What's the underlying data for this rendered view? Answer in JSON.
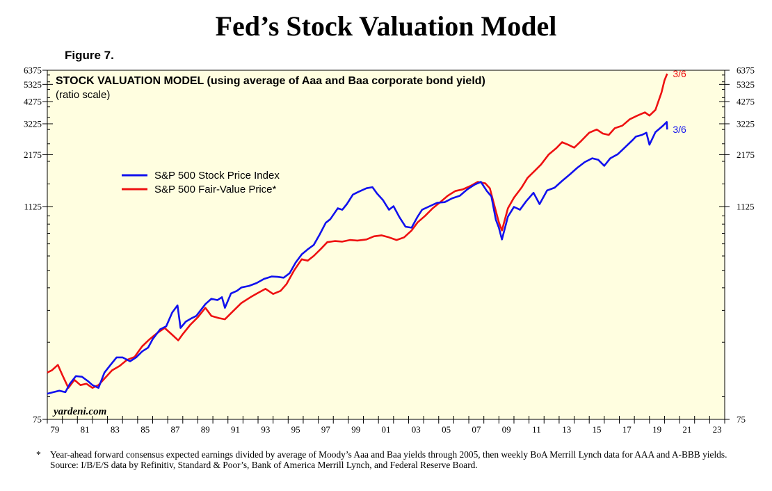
{
  "page": {
    "title": "Fed’s Stock Valuation Model",
    "figure_label": "Figure 7."
  },
  "chart_data": {
    "type": "line",
    "title": "STOCK VALUATION MODEL (using average of Aaa and Baa corporate bond yield)",
    "subtitle": "(ratio scale)",
    "scale": "log",
    "ylim": [
      75,
      6375
    ],
    "xlim": [
      1979,
      2024
    ],
    "y_ticks": [
      "75",
      "1125",
      "2175",
      "3225",
      "4275",
      "5325",
      "6375"
    ],
    "x_ticks": [
      "79",
      "81",
      "83",
      "85",
      "87",
      "89",
      "91",
      "93",
      "95",
      "97",
      "99",
      "01",
      "03",
      "05",
      "07",
      "09",
      "11",
      "13",
      "15",
      "17",
      "19",
      "21",
      "23"
    ],
    "watermark": "yardeni.com",
    "legend": [
      "S&P 500 Stock Price Index",
      "S&P 500 Fair-Value Price*"
    ],
    "series": [
      {
        "name": "S&P 500 Stock Price Index",
        "color": "#1111ee",
        "end_label": "3/6",
        "points": [
          [
            1979.0,
            104
          ],
          [
            1979.4,
            106
          ],
          [
            1979.8,
            108
          ],
          [
            1980.2,
            106
          ],
          [
            1980.5,
            118
          ],
          [
            1980.9,
            130
          ],
          [
            1981.3,
            129
          ],
          [
            1981.7,
            122
          ],
          [
            1982.0,
            116
          ],
          [
            1982.4,
            112
          ],
          [
            1982.8,
            136
          ],
          [
            1983.2,
            150
          ],
          [
            1983.6,
            165
          ],
          [
            1984.0,
            165
          ],
          [
            1984.5,
            157
          ],
          [
            1984.9,
            165
          ],
          [
            1985.3,
            178
          ],
          [
            1985.7,
            187
          ],
          [
            1986.0,
            208
          ],
          [
            1986.5,
            236
          ],
          [
            1986.9,
            245
          ],
          [
            1987.3,
            292
          ],
          [
            1987.65,
            320
          ],
          [
            1987.85,
            240
          ],
          [
            1988.2,
            260
          ],
          [
            1988.6,
            272
          ],
          [
            1988.9,
            280
          ],
          [
            1989.5,
            325
          ],
          [
            1989.9,
            348
          ],
          [
            1990.3,
            342
          ],
          [
            1990.6,
            355
          ],
          [
            1990.8,
            310
          ],
          [
            1991.2,
            372
          ],
          [
            1991.6,
            385
          ],
          [
            1991.9,
            402
          ],
          [
            1992.4,
            410
          ],
          [
            1992.9,
            425
          ],
          [
            1993.4,
            448
          ],
          [
            1993.9,
            462
          ],
          [
            1994.3,
            460
          ],
          [
            1994.7,
            455
          ],
          [
            1995.1,
            482
          ],
          [
            1995.5,
            552
          ],
          [
            1995.9,
            612
          ],
          [
            1996.3,
            652
          ],
          [
            1996.7,
            690
          ],
          [
            1997.1,
            790
          ],
          [
            1997.5,
            915
          ],
          [
            1997.8,
            958
          ],
          [
            1998.3,
            1100
          ],
          [
            1998.6,
            1080
          ],
          [
            1998.9,
            1160
          ],
          [
            1999.3,
            1310
          ],
          [
            1999.7,
            1360
          ],
          [
            2000.2,
            1420
          ],
          [
            2000.6,
            1440
          ],
          [
            2000.9,
            1330
          ],
          [
            2001.3,
            1220
          ],
          [
            2001.7,
            1080
          ],
          [
            2002.0,
            1130
          ],
          [
            2002.4,
            980
          ],
          [
            2002.8,
            870
          ],
          [
            2003.2,
            860
          ],
          [
            2003.6,
            990
          ],
          [
            2003.9,
            1080
          ],
          [
            2004.4,
            1130
          ],
          [
            2004.9,
            1180
          ],
          [
            2005.4,
            1190
          ],
          [
            2005.9,
            1250
          ],
          [
            2006.4,
            1290
          ],
          [
            2006.9,
            1400
          ],
          [
            2007.4,
            1490
          ],
          [
            2007.8,
            1540
          ],
          [
            2008.2,
            1370
          ],
          [
            2008.5,
            1280
          ],
          [
            2008.8,
            950
          ],
          [
            2009.0,
            860
          ],
          [
            2009.2,
            740
          ],
          [
            2009.6,
            990
          ],
          [
            2010.0,
            1120
          ],
          [
            2010.4,
            1080
          ],
          [
            2010.8,
            1200
          ],
          [
            2011.3,
            1340
          ],
          [
            2011.7,
            1160
          ],
          [
            2012.2,
            1380
          ],
          [
            2012.7,
            1430
          ],
          [
            2013.2,
            1560
          ],
          [
            2013.7,
            1690
          ],
          [
            2014.2,
            1840
          ],
          [
            2014.7,
            1980
          ],
          [
            2015.2,
            2080
          ],
          [
            2015.6,
            2040
          ],
          [
            2016.0,
            1890
          ],
          [
            2016.4,
            2080
          ],
          [
            2016.9,
            2190
          ],
          [
            2017.4,
            2400
          ],
          [
            2017.9,
            2630
          ],
          [
            2018.1,
            2740
          ],
          [
            2018.5,
            2800
          ],
          [
            2018.8,
            2880
          ],
          [
            2019.0,
            2470
          ],
          [
            2019.4,
            2900
          ],
          [
            2019.9,
            3150
          ],
          [
            2020.15,
            3300
          ],
          [
            2020.18,
            3000
          ]
        ]
      },
      {
        "name": "S&P 500 Fair-Value Price*",
        "color": "#ee1111",
        "end_label": "3/6",
        "points": [
          [
            1979.0,
            136
          ],
          [
            1979.3,
            140
          ],
          [
            1979.7,
            150
          ],
          [
            1980.0,
            132
          ],
          [
            1980.4,
            112
          ],
          [
            1980.8,
            124
          ],
          [
            1981.2,
            116
          ],
          [
            1981.6,
            118
          ],
          [
            1982.0,
            112
          ],
          [
            1982.4,
            116
          ],
          [
            1982.8,
            126
          ],
          [
            1983.3,
            140
          ],
          [
            1983.8,
            148
          ],
          [
            1984.3,
            160
          ],
          [
            1984.8,
            166
          ],
          [
            1985.3,
            190
          ],
          [
            1985.8,
            208
          ],
          [
            1986.3,
            225
          ],
          [
            1986.8,
            240
          ],
          [
            1987.3,
            220
          ],
          [
            1987.7,
            205
          ],
          [
            1988.0,
            222
          ],
          [
            1988.5,
            250
          ],
          [
            1989.0,
            275
          ],
          [
            1989.5,
            310
          ],
          [
            1989.9,
            280
          ],
          [
            1990.4,
            272
          ],
          [
            1990.8,
            268
          ],
          [
            1991.3,
            295
          ],
          [
            1991.9,
            330
          ],
          [
            1992.5,
            355
          ],
          [
            1993.0,
            375
          ],
          [
            1993.5,
            395
          ],
          [
            1994.0,
            370
          ],
          [
            1994.5,
            385
          ],
          [
            1994.9,
            420
          ],
          [
            1995.4,
            500
          ],
          [
            1995.9,
            575
          ],
          [
            1996.3,
            565
          ],
          [
            1996.7,
            600
          ],
          [
            1997.2,
            660
          ],
          [
            1997.6,
            715
          ],
          [
            1998.1,
            725
          ],
          [
            1998.6,
            720
          ],
          [
            1999.1,
            735
          ],
          [
            1999.6,
            730
          ],
          [
            2000.2,
            740
          ],
          [
            2000.7,
            770
          ],
          [
            2001.2,
            780
          ],
          [
            2001.7,
            760
          ],
          [
            2002.2,
            735
          ],
          [
            2002.7,
            760
          ],
          [
            2003.2,
            830
          ],
          [
            2003.6,
            920
          ],
          [
            2004.1,
            1000
          ],
          [
            2004.6,
            1100
          ],
          [
            2005.1,
            1190
          ],
          [
            2005.6,
            1290
          ],
          [
            2006.1,
            1370
          ],
          [
            2006.6,
            1400
          ],
          [
            2007.1,
            1460
          ],
          [
            2007.6,
            1540
          ],
          [
            2008.1,
            1510
          ],
          [
            2008.4,
            1420
          ],
          [
            2008.8,
            1060
          ],
          [
            2009.0,
            920
          ],
          [
            2009.2,
            830
          ],
          [
            2009.6,
            1100
          ],
          [
            2010.0,
            1260
          ],
          [
            2010.5,
            1430
          ],
          [
            2010.9,
            1620
          ],
          [
            2011.4,
            1780
          ],
          [
            2011.8,
            1920
          ],
          [
            2012.3,
            2180
          ],
          [
            2012.8,
            2360
          ],
          [
            2013.2,
            2550
          ],
          [
            2013.6,
            2470
          ],
          [
            2014.0,
            2380
          ],
          [
            2014.5,
            2610
          ],
          [
            2015.0,
            2880
          ],
          [
            2015.5,
            3000
          ],
          [
            2015.9,
            2850
          ],
          [
            2016.3,
            2800
          ],
          [
            2016.7,
            3050
          ],
          [
            2017.2,
            3150
          ],
          [
            2017.7,
            3420
          ],
          [
            2018.2,
            3580
          ],
          [
            2018.7,
            3730
          ],
          [
            2019.0,
            3580
          ],
          [
            2019.4,
            3850
          ],
          [
            2019.8,
            4800
          ],
          [
            2020.0,
            5600
          ],
          [
            2020.18,
            6100
          ]
        ]
      }
    ]
  },
  "footnote": {
    "star": "*",
    "text": "Year-ahead forward consensus expected earnings divided by average of Moody’s Aaa and Baa yields through 2005, then weekly BoA Merrill Lynch data for AAA and A-BBB yields.",
    "source": "Source: I/B/E/S data by Refinitiv, Standard & Poor’s, Bank of America Merrill Lynch, and Federal Reserve Board."
  }
}
